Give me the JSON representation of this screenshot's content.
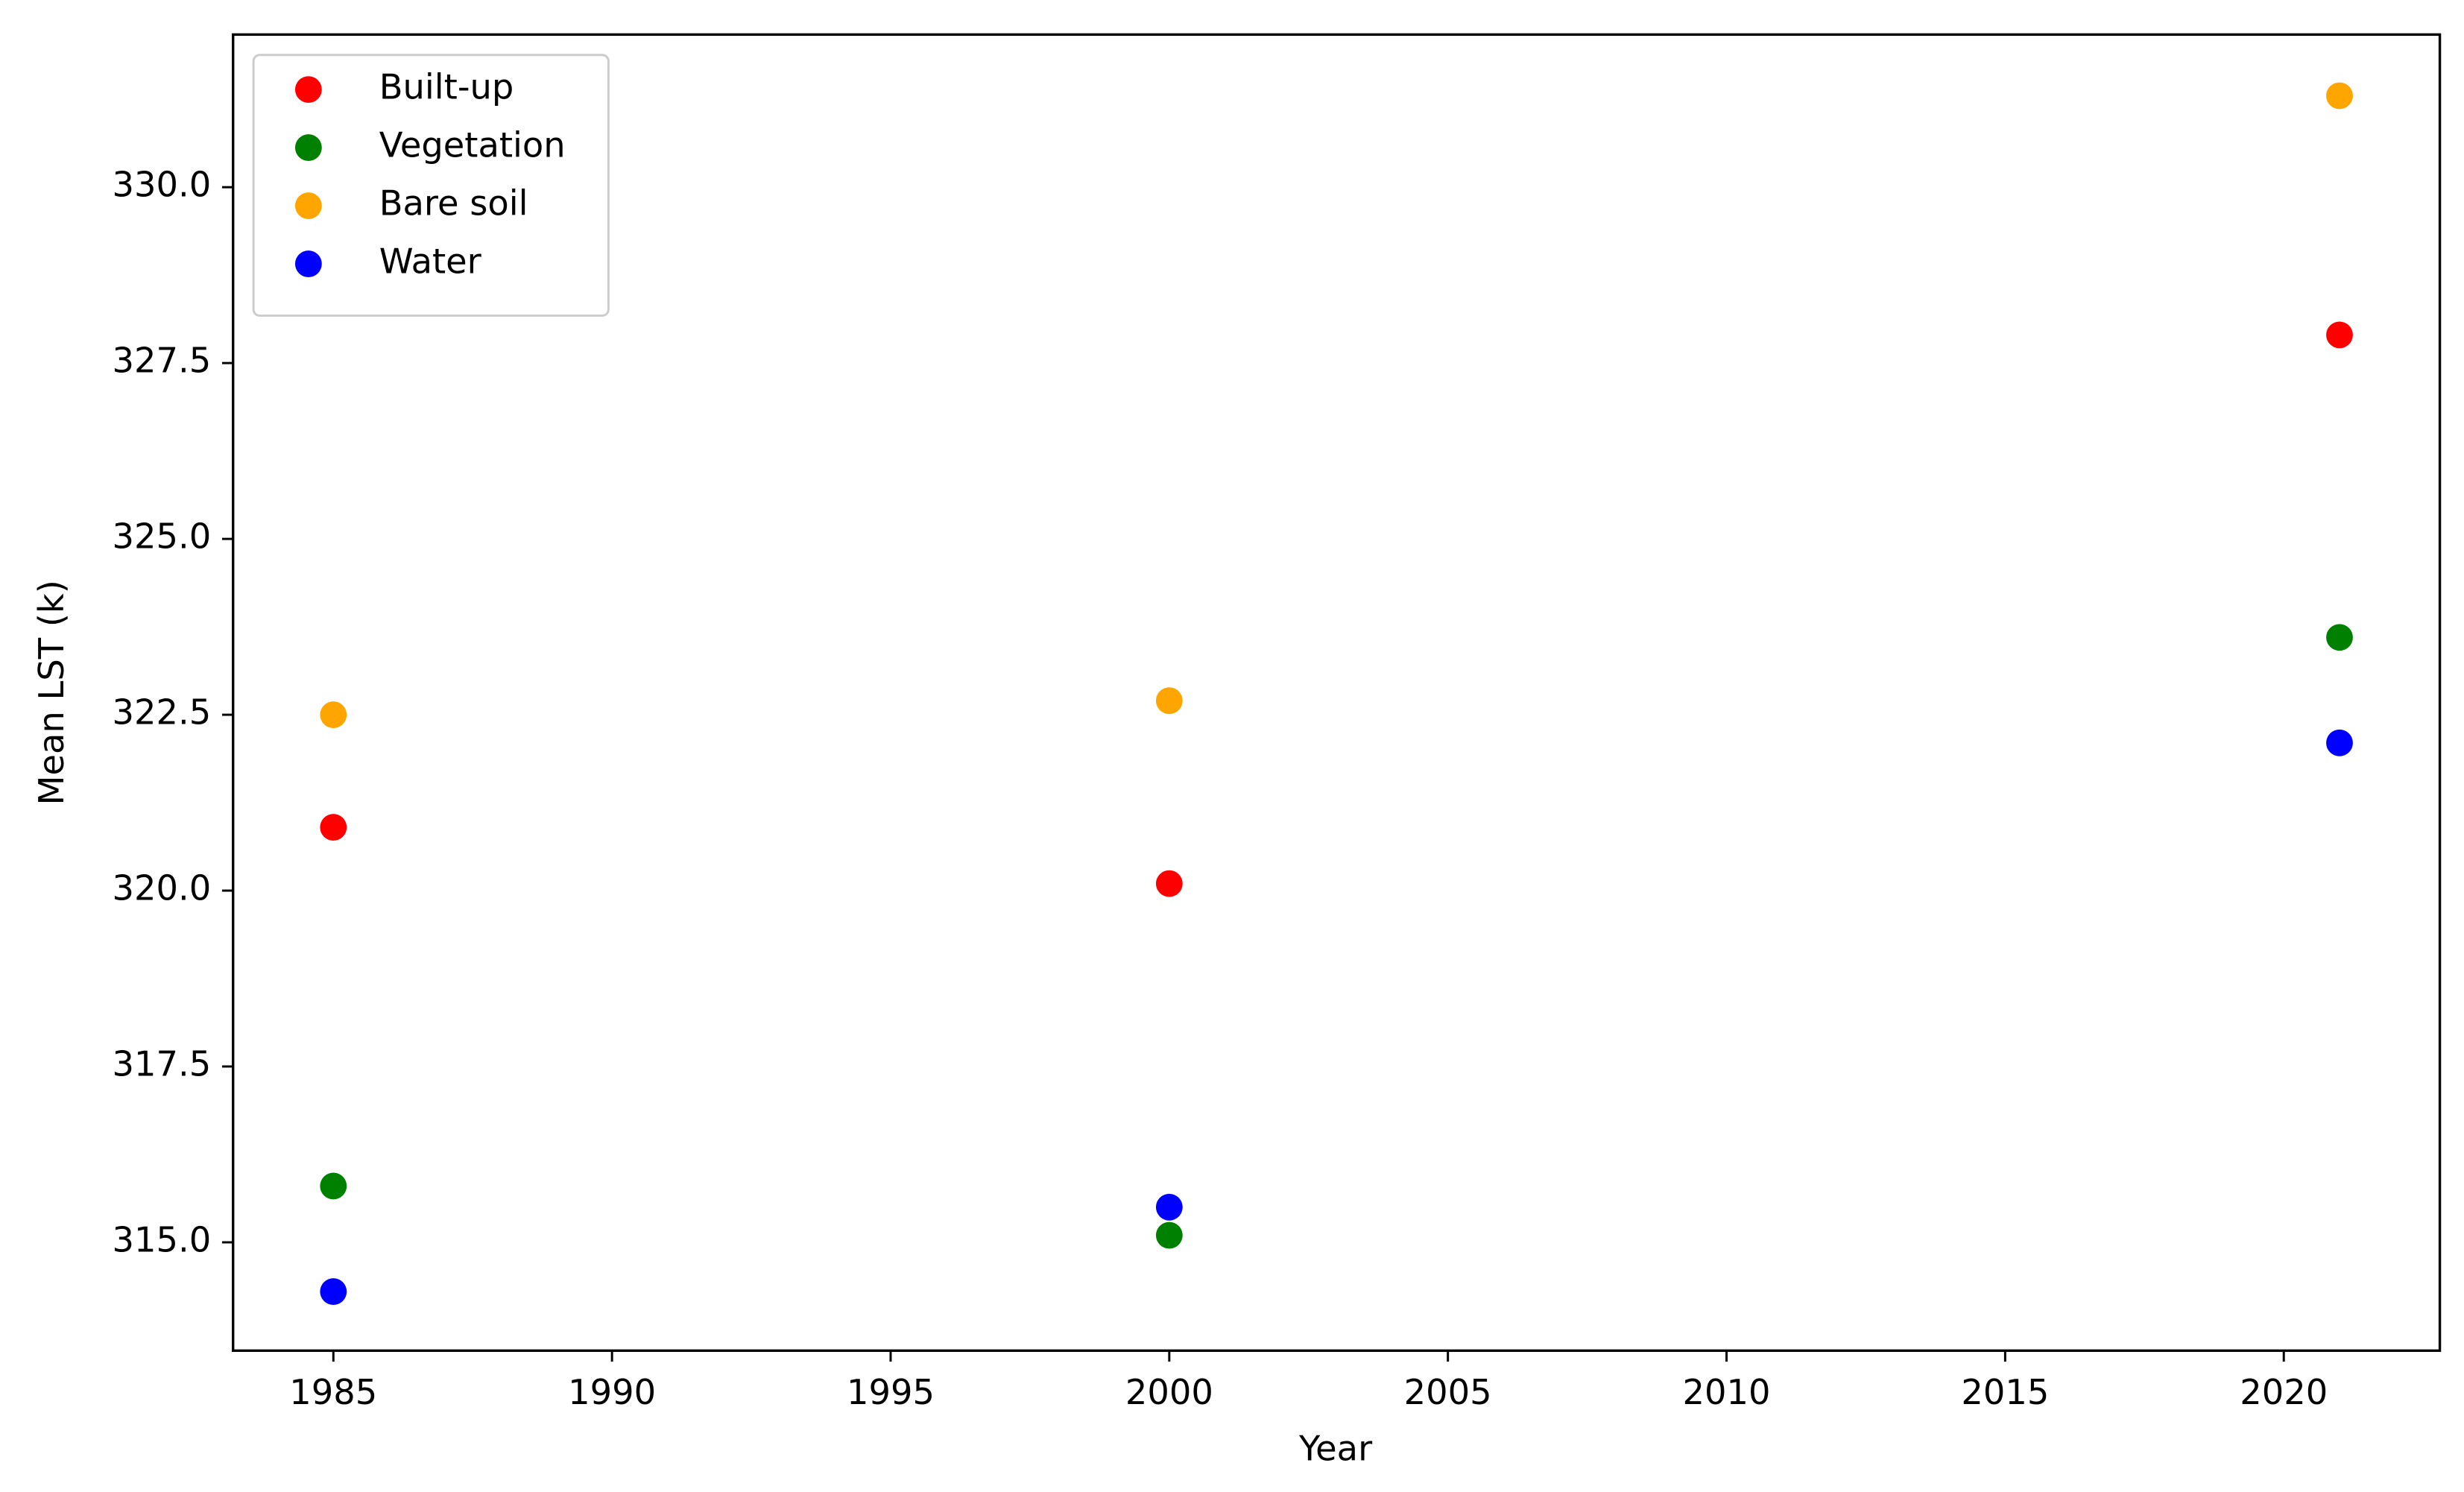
{
  "chart_data": {
    "type": "scatter",
    "x_label": "Year",
    "y_label": "Mean LST (k)",
    "x": [
      1985,
      2000,
      2021
    ],
    "series": [
      {
        "name": "Built-up",
        "color": "#ff0000",
        "values": [
          320.9,
          320.1,
          327.9
        ]
      },
      {
        "name": "Vegetation",
        "color": "#008000",
        "values": [
          315.8,
          315.1,
          323.6
        ]
      },
      {
        "name": "Bare soil",
        "color": "#ffa500",
        "values": [
          322.5,
          322.7,
          331.3
        ]
      },
      {
        "name": "Water",
        "color": "#0000ff",
        "values": [
          314.3,
          315.5,
          322.1
        ]
      }
    ],
    "xlim": [
      1983.2,
      2022.8
    ],
    "xticks": [
      1985,
      1990,
      1995,
      2000,
      2005,
      2010,
      2015,
      2020
    ],
    "ylim": [
      313.46,
      332.17
    ],
    "yticks": [
      {
        "value": 315,
        "label": "315.0"
      },
      317.5,
      {
        "value": 320,
        "label": "320.0"
      },
      322.5,
      {
        "value": 325,
        "label": "325.0"
      },
      327.5,
      {
        "value": 330,
        "label": "330.0"
      }
    ],
    "grid": false,
    "legend": "upper-left"
  }
}
